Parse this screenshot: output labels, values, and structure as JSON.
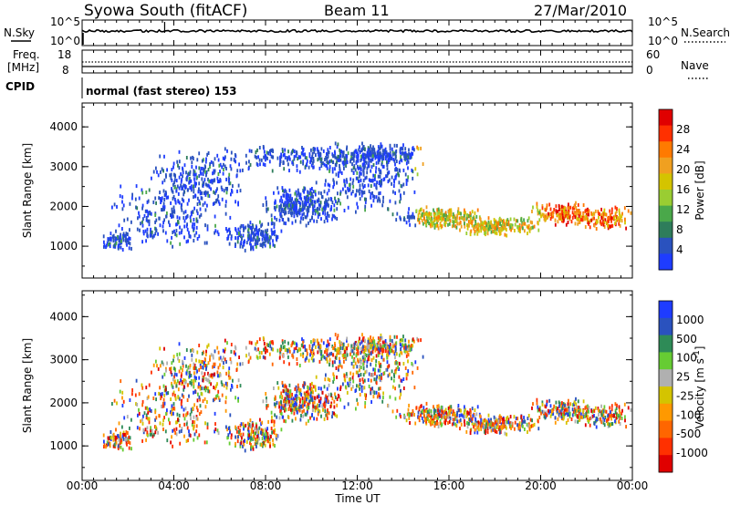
{
  "header": {
    "station": "Syowa South (fitACF)",
    "beam": "Beam 11",
    "date": "27/Mar/2010"
  },
  "top_panels": {
    "nsky_label": "N.Sky",
    "nsearch_label": "N.Search",
    "nsky_ticks": [
      "10^5",
      "10^0"
    ],
    "nsearch_ticks": [
      "10^5",
      "10^0"
    ],
    "freq_label_line1": "Freq.",
    "freq_label_line2": "[MHz]",
    "freq_ticks": [
      "18",
      "8"
    ],
    "nave_label": "Nave",
    "nave_ticks": [
      "60",
      "0"
    ],
    "cpid_label": "CPID",
    "cpid_value": "normal (fast stereo) 153"
  },
  "colors": {
    "power": [
      "#1e3cff",
      "#2a52be",
      "#2e7d5b",
      "#4aa84a",
      "#9acd32",
      "#d4c400",
      "#f0a020",
      "#ff7a00",
      "#ff3000",
      "#e00000"
    ],
    "velocity": [
      "#1e3cff",
      "#2a52be",
      "#2e8b57",
      "#66cc33",
      "#b0b0b0",
      "#d4c400",
      "#ff9900",
      "#ff6600",
      "#ff3000",
      "#e00000"
    ]
  },
  "chart_data": [
    {
      "type": "heatmap",
      "name": "power",
      "xlabel": "Time UT",
      "ylabel": "Slant Range [km]",
      "x_ticks": [
        "00:00",
        "04:00",
        "08:00",
        "12:00",
        "16:00",
        "20:00",
        "00:00"
      ],
      "xlim_hours": [
        0,
        24
      ],
      "ylim": [
        200,
        4600
      ],
      "y_ticks": [
        1000,
        2000,
        3000,
        4000
      ],
      "colorbar_label": "Power [dB]",
      "colorbar_ticks": [
        "28",
        "24",
        "20",
        "16",
        "12",
        "8",
        "4"
      ],
      "colorbar_range": [
        0,
        30
      ],
      "grid": false
    },
    {
      "type": "heatmap",
      "name": "velocity",
      "xlabel": "Time UT",
      "ylabel": "Slant Range [km]",
      "x_ticks": [
        "00:00",
        "04:00",
        "08:00",
        "12:00",
        "16:00",
        "20:00",
        "00:00"
      ],
      "xlim_hours": [
        0,
        24
      ],
      "ylim": [
        200,
        4600
      ],
      "y_ticks": [
        1000,
        2000,
        3000,
        4000
      ],
      "colorbar_label": "Velocity [m s",
      "colorbar_label_sup": "-1",
      "colorbar_label_end": "]",
      "colorbar_ticks": [
        "1000",
        "500",
        "100",
        "25",
        "-25",
        "-100",
        "-500",
        "-1000"
      ],
      "grid": false
    }
  ]
}
